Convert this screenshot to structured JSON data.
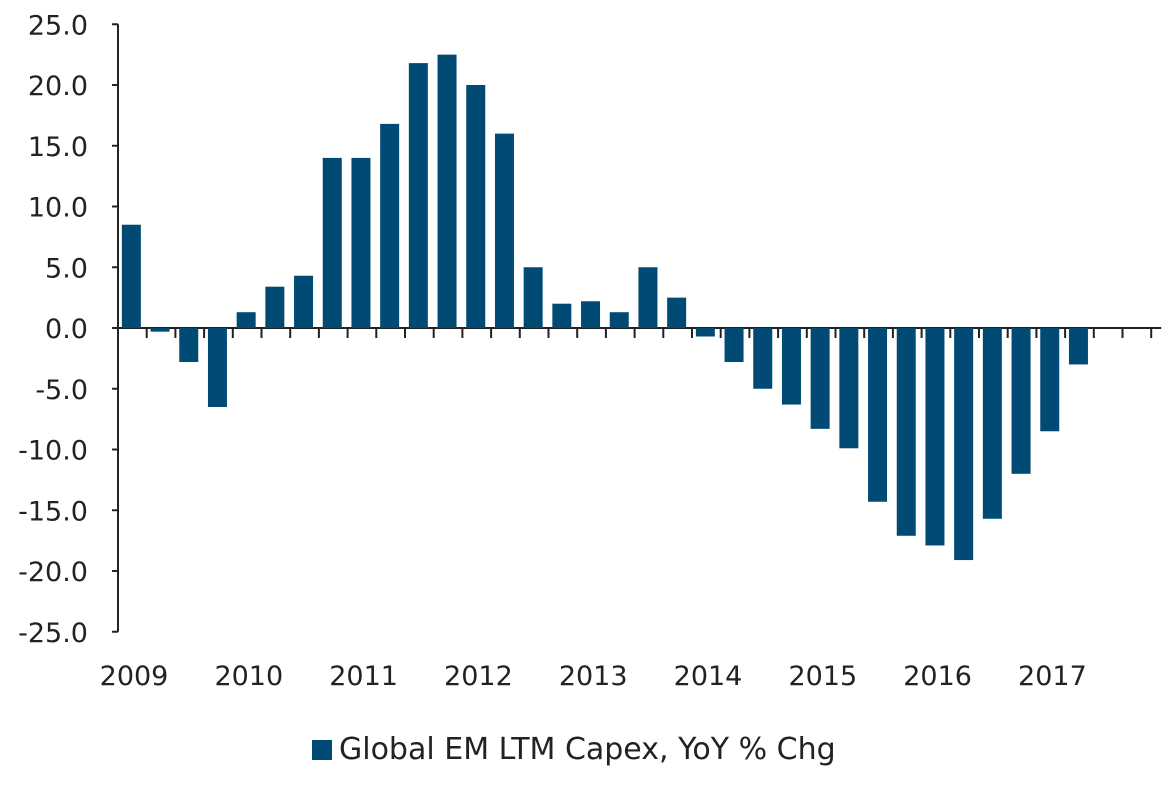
{
  "chart_data": {
    "type": "bar",
    "title": "",
    "xlabel": "",
    "ylabel": "",
    "ylim": [
      -25,
      25
    ],
    "yticks": [
      "25.0",
      "20.0",
      "15.0",
      "10.0",
      "5.0",
      "0.0",
      "-5.0",
      "-10.0",
      "-15.0",
      "-20.0",
      "-25.0"
    ],
    "year_labels": [
      "2009",
      "2010",
      "2011",
      "2012",
      "2013",
      "2014",
      "2015",
      "2016",
      "2017"
    ],
    "categories": [
      "2009 Q1",
      "2009 Q2",
      "2009 Q3",
      "2009 Q4",
      "2010 Q1",
      "2010 Q2",
      "2010 Q3",
      "2010 Q4",
      "2011 Q1",
      "2011 Q2",
      "2011 Q3",
      "2011 Q4",
      "2012 Q1",
      "2012 Q2",
      "2012 Q3",
      "2012 Q4",
      "2013 Q1",
      "2013 Q2",
      "2013 Q3",
      "2013 Q4",
      "2014 Q1",
      "2014 Q2",
      "2014 Q3",
      "2014 Q4",
      "2015 Q1",
      "2015 Q2",
      "2015 Q3",
      "2015 Q4",
      "2016 Q1",
      "2016 Q2",
      "2016 Q3",
      "2016 Q4",
      "2017 Q1",
      "2017 Q2",
      "2017 Q3",
      "2017 Q4"
    ],
    "series": [
      {
        "name": "Global EM LTM Capex, YoY % Chg",
        "color": "#004a73",
        "values": [
          8.5,
          -0.3,
          -2.8,
          -6.5,
          1.3,
          3.4,
          4.3,
          14.0,
          14.0,
          16.8,
          21.8,
          22.5,
          20.0,
          16.0,
          5.0,
          2.0,
          2.2,
          1.3,
          5.0,
          2.5,
          -0.7,
          -2.8,
          -5.0,
          -6.3,
          -8.3,
          -9.9,
          -14.3,
          -17.1,
          -17.9,
          -19.1,
          -15.7,
          -12.0,
          -8.5,
          -3.0,
          null,
          null
        ]
      }
    ],
    "grid": false,
    "legend_position": "bottom"
  }
}
